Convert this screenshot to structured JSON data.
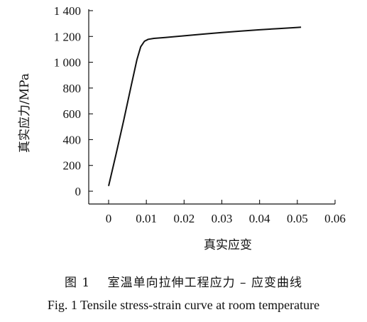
{
  "chart_data": {
    "type": "line",
    "xlabel": "真实应变",
    "ylabel": "真实应力/MPa",
    "xlim": [
      0,
      0.06
    ],
    "ylim": [
      0,
      1400
    ],
    "xticks": [
      "0",
      "0.01",
      "0.02",
      "0.03",
      "0.04",
      "0.05",
      "0.06"
    ],
    "yticks": [
      "0",
      "200",
      "400",
      "600",
      "800",
      "1 000",
      "1 200",
      "1 400"
    ],
    "grid": false,
    "series": [
      {
        "x": [
          0,
          0.002,
          0.004,
          0.006,
          0.0075,
          0.0085,
          0.0095,
          0.0105,
          0.012,
          0.015,
          0.02,
          0.025,
          0.03,
          0.035,
          0.04,
          0.045,
          0.05,
          0.051
        ],
        "y": [
          40,
          290,
          550,
          820,
          1020,
          1120,
          1163,
          1178,
          1185,
          1192,
          1205,
          1218,
          1230,
          1242,
          1252,
          1261,
          1270,
          1272
        ]
      }
    ]
  },
  "caption": {
    "cn": "图 1　 室温单向拉伸工程应力 – 应变曲线",
    "en": "Fig. 1 Tensile stress-strain curve at room temperature"
  }
}
